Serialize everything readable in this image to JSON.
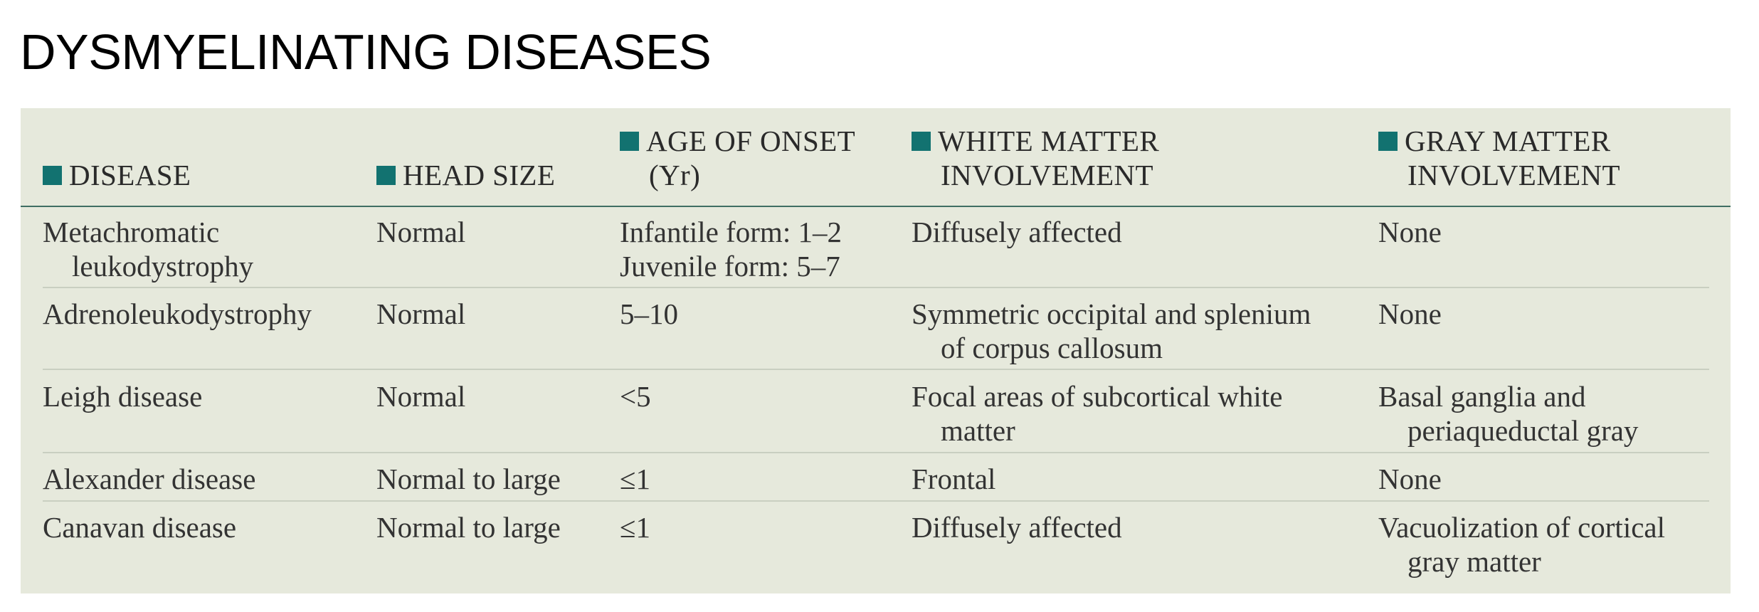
{
  "title": "DYSMYELINATING DISEASES",
  "colors": {
    "panel_background": "#e6e9dc",
    "header_square": "#127270",
    "header_rule": "#3f6e63",
    "row_rule": "#c9cfc1"
  },
  "table": {
    "columns": [
      {
        "line1": "DISEASE",
        "line2": ""
      },
      {
        "line1": "HEAD SIZE",
        "line2": ""
      },
      {
        "line1": "AGE OF ONSET",
        "line2": "(Yr)"
      },
      {
        "line1": "WHITE MATTER",
        "line2": "INVOLVEMENT"
      },
      {
        "line1": "GRAY MATTER",
        "line2": "INVOLVEMENT"
      }
    ],
    "rows": [
      {
        "disease": {
          "l1": "Metachromatic",
          "l2": "leukodystrophy"
        },
        "head_size": "Normal",
        "age_onset": {
          "l1": "Infantile form: 1–2",
          "l2": "Juvenile form: 5–7"
        },
        "white_matter": {
          "l1": "Diffusely affected",
          "l2": ""
        },
        "gray_matter": {
          "l1": "None",
          "l2": ""
        }
      },
      {
        "disease": {
          "l1": "Adrenoleukodystrophy",
          "l2": ""
        },
        "head_size": "Normal",
        "age_onset": {
          "l1": "5–10",
          "l2": ""
        },
        "white_matter": {
          "l1": "Symmetric occipital and splenium",
          "l2": "of corpus callosum"
        },
        "gray_matter": {
          "l1": "None",
          "l2": ""
        }
      },
      {
        "disease": {
          "l1": "Leigh disease",
          "l2": ""
        },
        "head_size": "Normal",
        "age_onset": {
          "l1": "<5",
          "l2": ""
        },
        "white_matter": {
          "l1": "Focal areas of subcortical white",
          "l2": "matter"
        },
        "gray_matter": {
          "l1": "Basal ganglia and",
          "l2": "periaqueductal gray"
        }
      },
      {
        "disease": {
          "l1": "Alexander disease",
          "l2": ""
        },
        "head_size": "Normal to large",
        "age_onset": {
          "l1": "≤1",
          "l2": ""
        },
        "white_matter": {
          "l1": "Frontal",
          "l2": ""
        },
        "gray_matter": {
          "l1": "None",
          "l2": ""
        }
      },
      {
        "disease": {
          "l1": "Canavan disease",
          "l2": ""
        },
        "head_size": "Normal to large",
        "age_onset": {
          "l1": "≤1",
          "l2": ""
        },
        "white_matter": {
          "l1": "Diffusely affected",
          "l2": ""
        },
        "gray_matter": {
          "l1": "Vacuolization of cortical",
          "l2": "gray matter"
        }
      }
    ]
  }
}
